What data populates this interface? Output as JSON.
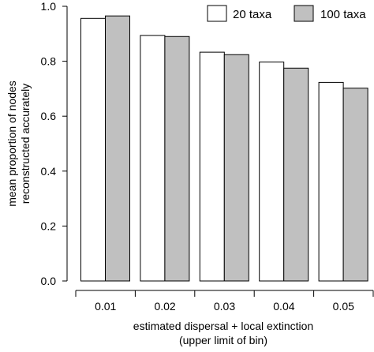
{
  "chart_data": {
    "type": "bar",
    "title": "",
    "xlabel_line1": "estimated dispersal + local extinction",
    "xlabel_line2": "(upper limit of bin)",
    "ylabel_line1": "mean proportion of nodes",
    "ylabel_line2": "reconstructed accurately",
    "categories": [
      "0.01",
      "0.02",
      "0.03",
      "0.04",
      "0.05"
    ],
    "ylim": [
      0,
      1.0
    ],
    "yticks": [
      0.0,
      0.2,
      0.4,
      0.6,
      0.8,
      1.0
    ],
    "ytick_labels": [
      "0.0",
      "0.2",
      "0.4",
      "0.6",
      "0.8",
      "1.0"
    ],
    "grid": false,
    "legend_position": "top-right",
    "series": [
      {
        "name": "20 taxa",
        "color": "#ffffff",
        "values": [
          0.956,
          0.894,
          0.833,
          0.797,
          0.723
        ]
      },
      {
        "name": "100 taxa",
        "color": "#c0c0c0",
        "values": [
          0.965,
          0.89,
          0.824,
          0.775,
          0.702
        ]
      }
    ]
  }
}
